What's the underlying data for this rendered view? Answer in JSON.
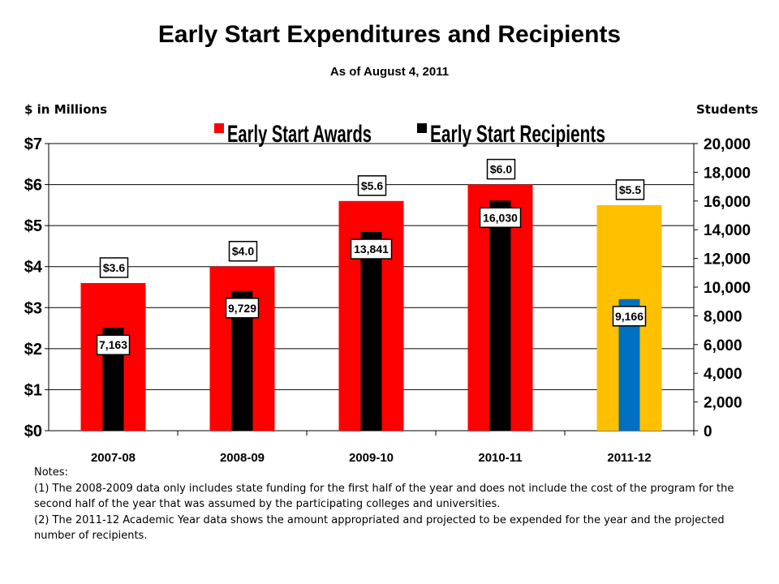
{
  "title": "Early Start Expenditures and Recipients",
  "subtitle": "As of August 4, 2011",
  "y_left_caption": "$ in Millions",
  "y_right_caption": "Students",
  "notes": {
    "heading": "Notes:",
    "items": [
      "(1)  The 2008-2009 data only includes state funding for the first half of the year and does not include the cost of the program for the second half of the year that was assumed by the participating colleges and universities.",
      "(2)  The 2011-12 Academic Year data shows the amount appropriated and projected to be expended for the year and the projected number of recipients."
    ]
  },
  "chart_data": {
    "type": "bar",
    "categories": [
      "2007-08",
      "2008-09",
      "2009-10",
      "2010-11",
      "2011-12"
    ],
    "series": [
      {
        "name": "Early Start Awards",
        "axis": "left",
        "values": [
          3.6,
          4.0,
          5.6,
          6.0,
          5.5
        ],
        "labels": [
          "$3.6",
          "$4.0",
          "$5.6",
          "$6.0",
          "$5.5"
        ],
        "colors": [
          "#FF0000",
          "#FF0000",
          "#FF0000",
          "#FF0000",
          "#FFC000"
        ]
      },
      {
        "name": "Early Start Recipients",
        "axis": "right",
        "values": [
          7163,
          9729,
          13841,
          16030,
          9166
        ],
        "labels": [
          "7,163",
          "9,729",
          "13,841",
          "16,030",
          "9,166"
        ],
        "colors": [
          "#000000",
          "#000000",
          "#000000",
          "#000000",
          "#0070C0"
        ]
      }
    ],
    "y_left": {
      "min": 0,
      "max": 7,
      "ticks": [
        "$0",
        "$1",
        "$2",
        "$3",
        "$4",
        "$5",
        "$6",
        "$7"
      ]
    },
    "y_right": {
      "min": 0,
      "max": 20000,
      "ticks": [
        "0",
        "2,000",
        "4,000",
        "6,000",
        "8,000",
        "10,000",
        "12,000",
        "14,000",
        "16,000",
        "18,000",
        "20,000"
      ]
    },
    "grid": true,
    "legend_placement": "top",
    "legend_colors": [
      "#FF0000",
      "#000000"
    ]
  }
}
